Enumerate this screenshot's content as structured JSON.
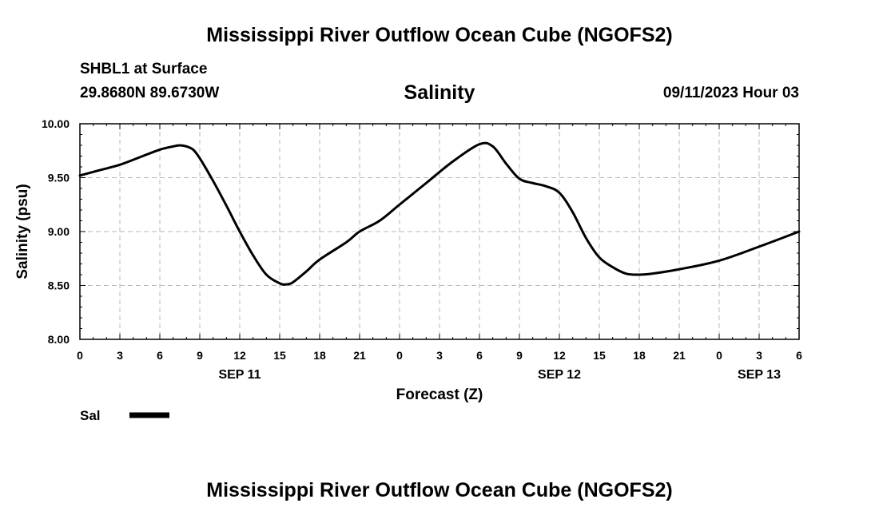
{
  "header": {
    "main_title": "Mississippi River Outflow Ocean Cube (NGOFS2)",
    "station": "SHBL1 at Surface",
    "coords": "29.8680N  89.6730W",
    "datetime": "09/11/2023 Hour 03",
    "footer_title": "Mississippi River Outflow Ocean Cube (NGOFS2)"
  },
  "chart_data": {
    "type": "line",
    "title": "Salinity",
    "xlabel": "Forecast (Z)",
    "ylabel": "Salinity (psu)",
    "ylim": [
      8.0,
      10.0
    ],
    "xlim": [
      0,
      54
    ],
    "yticks": [
      "8.00",
      "8.50",
      "9.00",
      "9.50",
      "10.00"
    ],
    "xticks": [
      "0",
      "3",
      "6",
      "9",
      "12",
      "15",
      "18",
      "21",
      "0",
      "3",
      "6",
      "9",
      "12",
      "15",
      "18",
      "21",
      "0",
      "3",
      "6"
    ],
    "date_labels": [
      {
        "label": "SEP 11",
        "hour": 12
      },
      {
        "label": "SEP 12",
        "hour": 36
      },
      {
        "label": "SEP 13",
        "hour": 51
      }
    ],
    "grid": true,
    "legend": "bottom-left",
    "series": [
      {
        "name": "Sal",
        "color": "#000000",
        "x": [
          0,
          1.5,
          3,
          4.5,
          6,
          7,
          7.5,
          8,
          8.5,
          9,
          10,
          11,
          12,
          13,
          14,
          15,
          15.5,
          16,
          17,
          18,
          20,
          21,
          22.5,
          24,
          26,
          28,
          30,
          31,
          32,
          33,
          34,
          35,
          36,
          37,
          38,
          39,
          40,
          41,
          42,
          43,
          45,
          48,
          51,
          54
        ],
        "values": [
          9.52,
          9.57,
          9.62,
          9.69,
          9.76,
          9.79,
          9.8,
          9.79,
          9.76,
          9.68,
          9.47,
          9.24,
          9.0,
          8.78,
          8.6,
          8.52,
          8.51,
          8.53,
          8.63,
          8.74,
          8.9,
          9.0,
          9.1,
          9.25,
          9.45,
          9.65,
          9.81,
          9.79,
          9.63,
          9.49,
          9.45,
          9.42,
          9.36,
          9.18,
          8.94,
          8.76,
          8.67,
          8.61,
          8.6,
          8.61,
          8.65,
          8.73,
          8.86,
          9.0
        ]
      }
    ]
  }
}
